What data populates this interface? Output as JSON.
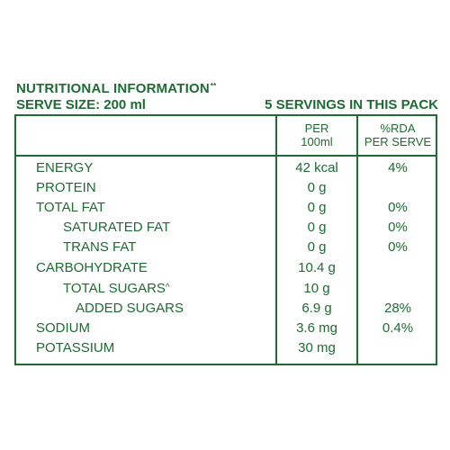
{
  "header": {
    "title": "NUTRITIONAL INFORMATION",
    "title_mark": "**",
    "serve_size": "SERVE SIZE: 200 ml",
    "servings": "5 SERVINGS IN THIS PACK"
  },
  "columns": {
    "per_100ml": [
      "PER",
      "100ml"
    ],
    "rda": [
      "%RDA",
      "PER SERVE"
    ]
  },
  "rows": [
    {
      "label": "ENERGY",
      "value": "42 kcal",
      "rda": "4%"
    },
    {
      "label": "PROTEIN",
      "value": "0 g",
      "rda": ""
    },
    {
      "label": "TOTAL FAT",
      "value": "0 g",
      "rda": "0%"
    },
    {
      "label": "SATURATED FAT",
      "value": "0 g",
      "rda": "0%"
    },
    {
      "label": "TRANS FAT",
      "value": "0 g",
      "rda": "0%"
    },
    {
      "label": "CARBOHYDRATE",
      "value": "10.4 g",
      "rda": ""
    },
    {
      "label": "TOTAL SUGARS",
      "mark": "^",
      "value": "10 g",
      "rda": ""
    },
    {
      "label": "ADDED SUGARS",
      "value": "6.9 g",
      "rda": "28%"
    },
    {
      "label": "SODIUM",
      "value": "3.6 mg",
      "rda": "0.4%"
    },
    {
      "label": "POTASSIUM",
      "value": "30 mg",
      "rda": ""
    }
  ],
  "colors": {
    "brand_green": "#1e6b33",
    "background": "#ffffff"
  }
}
